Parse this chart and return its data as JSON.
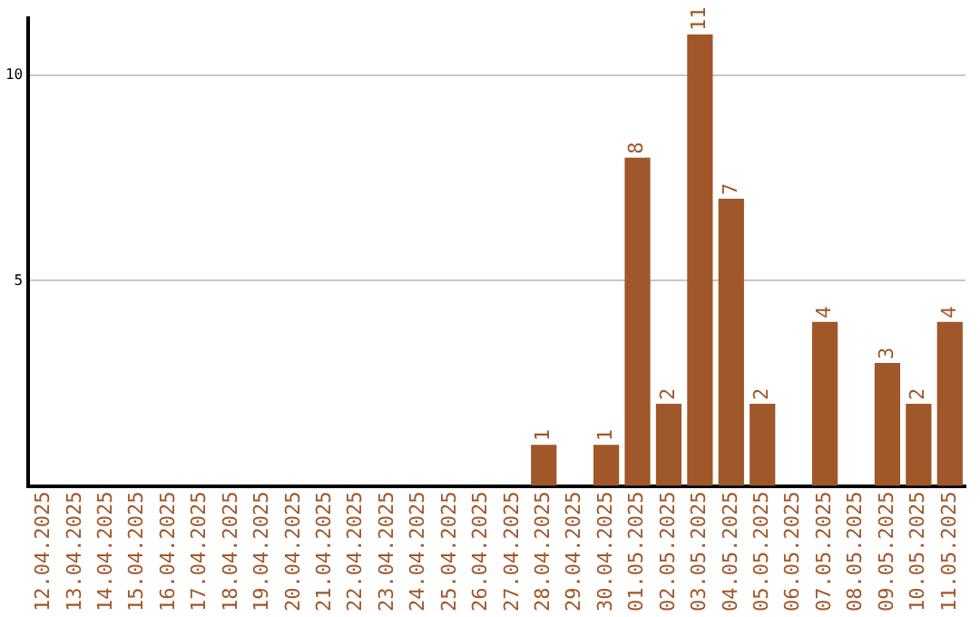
{
  "chart_data": {
    "type": "bar",
    "categories": [
      "12.04.2025",
      "13.04.2025",
      "14.04.2025",
      "15.04.2025",
      "16.04.2025",
      "17.04.2025",
      "18.04.2025",
      "19.04.2025",
      "20.04.2025",
      "21.04.2025",
      "22.04.2025",
      "23.04.2025",
      "24.04.2025",
      "25.04.2025",
      "26.04.2025",
      "27.04.2025",
      "28.04.2025",
      "29.04.2025",
      "30.04.2025",
      "01.05.2025",
      "02.05.2025",
      "03.05.2025",
      "04.05.2025",
      "05.05.2025",
      "06.05.2025",
      "07.05.2025",
      "08.05.2025",
      "09.05.2025",
      "10.05.2025",
      "11.05.2025"
    ],
    "values": [
      0,
      0,
      0,
      0,
      0,
      0,
      0,
      0,
      0,
      0,
      0,
      0,
      0,
      0,
      0,
      0,
      1,
      0,
      1,
      8,
      2,
      11,
      7,
      2,
      0,
      4,
      0,
      3,
      2,
      4
    ],
    "value_labels": [
      null,
      null,
      null,
      null,
      null,
      null,
      null,
      null,
      null,
      null,
      null,
      null,
      null,
      null,
      null,
      null,
      "1",
      null,
      "1",
      "8",
      "2",
      "11",
      "7",
      "2",
      null,
      "4",
      null,
      "3",
      "2",
      "4"
    ],
    "color": "#a0572a",
    "ylim": [
      0,
      11.4
    ],
    "yticks": [
      5,
      10
    ],
    "grid": "y"
  }
}
